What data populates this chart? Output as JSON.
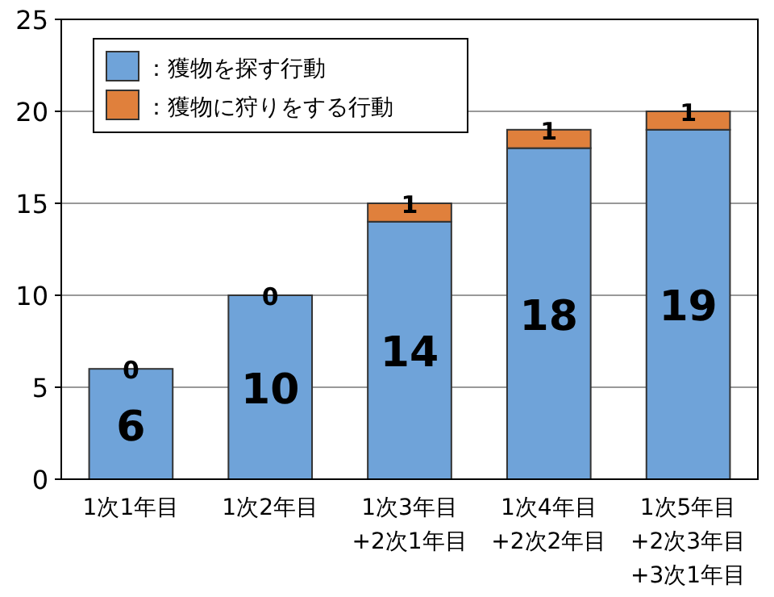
{
  "chart_data": {
    "type": "bar",
    "stacked": true,
    "categories": [
      "1次1年目",
      "1次2年目",
      "1次3年目\n+2次1年目",
      "1次4年目\n+2次2年目",
      "1次5年目\n+2次3年目\n+3次1年目"
    ],
    "series": [
      {
        "name": "：獲物を探す行動",
        "color": "#6fa3d9",
        "values": [
          6,
          10,
          14,
          18,
          19
        ]
      },
      {
        "name": "：獲物に狩りをする行動",
        "color": "#e0803c",
        "values": [
          0,
          0,
          1,
          1,
          1
        ]
      }
    ],
    "ylim": [
      0,
      25
    ],
    "yticks": [
      0,
      5,
      10,
      15,
      20,
      25
    ],
    "grid": "y",
    "legend": "top left",
    "data_labels": true
  }
}
